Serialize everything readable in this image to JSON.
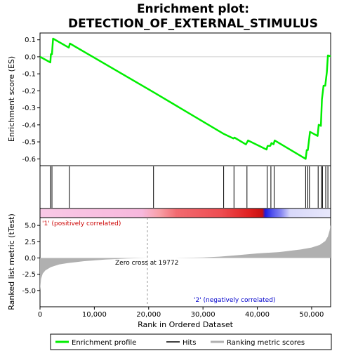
{
  "chart_data": {
    "type": "line",
    "title_line1": "Enrichment plot:",
    "title_line2": "DETECTION_OF_EXTERNAL_STIMULUS",
    "top_panel": {
      "ylabel": "Enrichment score (ES)",
      "ylim": [
        -0.64,
        0.14
      ],
      "yticks": [
        0.1,
        0.0,
        -0.1,
        -0.2,
        -0.3,
        -0.4,
        -0.5,
        -0.6
      ],
      "ytick_labels": [
        "0.1",
        "0.0",
        "-0.1",
        "-0.2",
        "-0.3",
        "-0.4",
        "-0.5",
        "-0.6"
      ],
      "series_name": "Enrichment profile",
      "color": "#00ee00",
      "x": [
        0,
        1900,
        2000,
        2200,
        2400,
        5300,
        5500,
        21000,
        33700,
        35600,
        35800,
        37900,
        38300,
        41700,
        41900,
        42400,
        42600,
        43000,
        43200,
        48900,
        49100,
        49300,
        49500,
        49700,
        51100,
        51300,
        51700,
        51900,
        52200,
        52500,
        52800,
        53000,
        53500
      ],
      "y": [
        0.0,
        -0.033,
        0.015,
        0.015,
        0.107,
        0.054,
        0.078,
        -0.21,
        -0.451,
        -0.48,
        -0.475,
        -0.515,
        -0.492,
        -0.545,
        -0.524,
        -0.523,
        -0.507,
        -0.514,
        -0.492,
        -0.6,
        -0.548,
        -0.548,
        -0.497,
        -0.441,
        -0.465,
        -0.4,
        -0.406,
        -0.25,
        -0.17,
        -0.17,
        -0.09,
        0.008,
        0.003
      ]
    },
    "hits": [
      1900,
      2200,
      5400,
      20900,
      33800,
      35700,
      38100,
      41800,
      42500,
      43100,
      48900,
      49300,
      49600,
      51200,
      51800,
      52000,
      52600,
      53000
    ],
    "xlabel": "Rank in Ordered Dataset",
    "xlim": [
      0,
      53500
    ],
    "xticks": [
      0,
      10000,
      20000,
      30000,
      40000,
      50000
    ],
    "xtick_labels": [
      "0",
      "10,000",
      "20,000",
      "30,000",
      "40,000",
      "50,000"
    ],
    "bottom_panel": {
      "ylabel": "Ranked list metric (tTest)",
      "ylim": [
        -7.5,
        6.2
      ],
      "yticks": [
        5.0,
        2.5,
        0.0,
        -2.5,
        -5.0
      ],
      "ytick_labels": [
        "5.0",
        "2.5",
        "0.0",
        "-2.5",
        "-5.0"
      ],
      "metric_x": [
        0,
        200,
        500,
        1000,
        2000,
        3500,
        5000,
        8000,
        12000,
        16000,
        19772,
        25000,
        30000,
        33000,
        36000,
        40000,
        44000,
        48000,
        50000,
        51500,
        52500,
        53000,
        53300,
        53500
      ],
      "metric_y": [
        -5.0,
        -3.2,
        -2.4,
        -1.9,
        -1.4,
        -1.0,
        -0.8,
        -0.5,
        -0.25,
        -0.08,
        0.0,
        0.0,
        0.08,
        0.2,
        0.4,
        0.7,
        0.9,
        1.3,
        1.6,
        2.0,
        2.6,
        3.3,
        4.2,
        5.1
      ],
      "color": "#b0b0b0",
      "zero_cross_label": "Zero cross at 19772",
      "zero_cross_x": 19772,
      "pos_label": "'1' (positively correlated)",
      "neg_label": "'2' (negatively correlated)",
      "pos_color": "#cc0000",
      "neg_color": "#0000cc"
    },
    "legend": {
      "placement": "bottom",
      "items": [
        {
          "label": "Enrichment profile",
          "color": "#00ee00"
        },
        {
          "label": "Hits",
          "color": "#000000"
        },
        {
          "label": "Ranking metric scores",
          "color": "#b0b0b0"
        }
      ]
    }
  }
}
